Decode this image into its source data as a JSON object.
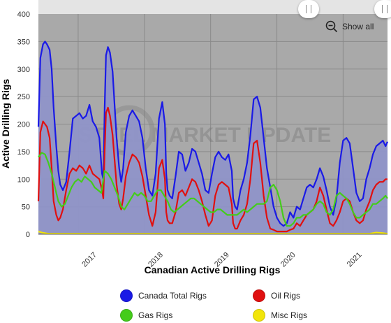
{
  "chart_data": {
    "type": "area",
    "title": "",
    "xlabel": "Canadian Active Drilling Rigs",
    "ylabel": "Active Drilling Rigs",
    "ylim": [
      0,
      400
    ],
    "yticks": [
      0,
      50,
      100,
      150,
      200,
      250,
      300,
      350,
      400
    ],
    "xlim": [
      2016.4,
      2021.67
    ],
    "xticks": [
      2017,
      2018,
      2019,
      2020,
      2021
    ],
    "xtick_labels": [
      "2017",
      "2018",
      "2019",
      "2020",
      "2021"
    ],
    "grid": true,
    "legend_position": "bottom",
    "watermark": "STEEL MARKET UPDATE",
    "series": [
      {
        "name": "Canada Total Rigs",
        "color": "#1a1ae6",
        "fill": "#8f93c8",
        "x": [
          2016.4,
          2016.43,
          2016.47,
          2016.5,
          2016.53,
          2016.57,
          2016.6,
          2016.63,
          2016.67,
          2016.7,
          2016.73,
          2016.77,
          2016.82,
          2016.87,
          2016.92,
          2016.97,
          2017.02,
          2017.07,
          2017.12,
          2017.17,
          2017.22,
          2017.27,
          2017.32,
          2017.36,
          2017.38,
          2017.4,
          2017.42,
          2017.45,
          2017.48,
          2017.52,
          2017.55,
          2017.58,
          2017.62,
          2017.65,
          2017.68,
          2017.72,
          2017.77,
          2017.82,
          2017.87,
          2017.92,
          2017.97,
          2018.02,
          2018.07,
          2018.12,
          2018.17,
          2018.22,
          2018.27,
          2018.31,
          2018.33,
          2018.35,
          2018.38,
          2018.42,
          2018.47,
          2018.52,
          2018.57,
          2018.62,
          2018.67,
          2018.72,
          2018.77,
          2018.82,
          2018.87,
          2018.92,
          2018.97,
          2019.02,
          2019.07,
          2019.12,
          2019.17,
          2019.22,
          2019.27,
          2019.32,
          2019.34,
          2019.37,
          2019.4,
          2019.45,
          2019.5,
          2019.55,
          2019.6,
          2019.65,
          2019.7,
          2019.75,
          2019.8,
          2019.85,
          2019.9,
          2019.95,
          2020.0,
          2020.05,
          2020.1,
          2020.15,
          2020.2,
          2020.25,
          2020.3,
          2020.35,
          2020.4,
          2020.45,
          2020.5,
          2020.55,
          2020.6,
          2020.65,
          2020.7,
          2020.75,
          2020.8,
          2020.85,
          2020.9,
          2020.95,
          2021.0,
          2021.05,
          2021.1,
          2021.15,
          2021.2,
          2021.25,
          2021.3,
          2021.35,
          2021.4,
          2021.45,
          2021.5,
          2021.55,
          2021.6,
          2021.64,
          2021.67
        ],
        "y": [
          195,
          320,
          345,
          350,
          345,
          335,
          300,
          230,
          160,
          115,
          90,
          80,
          95,
          150,
          210,
          215,
          220,
          210,
          215,
          235,
          205,
          195,
          175,
          110,
          100,
          230,
          325,
          340,
          330,
          295,
          235,
          175,
          120,
          95,
          120,
          185,
          215,
          225,
          215,
          205,
          175,
          120,
          80,
          70,
          110,
          210,
          240,
          200,
          110,
          80,
          70,
          65,
          105,
          150,
          145,
          115,
          130,
          155,
          150,
          130,
          110,
          80,
          75,
          110,
          140,
          150,
          140,
          135,
          145,
          115,
          65,
          50,
          45,
          80,
          100,
          130,
          180,
          245,
          250,
          230,
          175,
          120,
          85,
          50,
          30,
          20,
          15,
          20,
          40,
          30,
          50,
          45,
          65,
          85,
          90,
          85,
          100,
          120,
          105,
          80,
          50,
          35,
          65,
          130,
          170,
          175,
          165,
          120,
          75,
          60,
          65,
          100,
          120,
          145,
          160,
          165,
          170,
          160,
          168
        ]
      },
      {
        "name": "Oil Rigs",
        "color": "#e01010",
        "x": [
          2016.4,
          2016.43,
          2016.47,
          2016.5,
          2016.53,
          2016.57,
          2016.6,
          2016.63,
          2016.67,
          2016.7,
          2016.73,
          2016.77,
          2016.82,
          2016.87,
          2016.92,
          2016.97,
          2017.02,
          2017.07,
          2017.12,
          2017.17,
          2017.22,
          2017.27,
          2017.32,
          2017.36,
          2017.38,
          2017.4,
          2017.42,
          2017.45,
          2017.48,
          2017.52,
          2017.55,
          2017.58,
          2017.62,
          2017.65,
          2017.68,
          2017.72,
          2017.77,
          2017.82,
          2017.87,
          2017.92,
          2017.97,
          2018.02,
          2018.07,
          2018.12,
          2018.17,
          2018.22,
          2018.27,
          2018.31,
          2018.33,
          2018.35,
          2018.38,
          2018.42,
          2018.47,
          2018.52,
          2018.57,
          2018.62,
          2018.67,
          2018.72,
          2018.77,
          2018.82,
          2018.87,
          2018.92,
          2018.97,
          2019.02,
          2019.07,
          2019.12,
          2019.17,
          2019.22,
          2019.27,
          2019.32,
          2019.34,
          2019.37,
          2019.4,
          2019.45,
          2019.5,
          2019.55,
          2019.6,
          2019.65,
          2019.7,
          2019.75,
          2019.8,
          2019.85,
          2019.9,
          2019.95,
          2020.0,
          2020.05,
          2020.1,
          2020.15,
          2020.2,
          2020.25,
          2020.3,
          2020.35,
          2020.4,
          2020.45,
          2020.5,
          2020.55,
          2020.6,
          2020.65,
          2020.7,
          2020.75,
          2020.8,
          2020.85,
          2020.9,
          2020.95,
          2021.0,
          2021.05,
          2021.1,
          2021.15,
          2021.2,
          2021.25,
          2021.3,
          2021.35,
          2021.4,
          2021.45,
          2021.5,
          2021.55,
          2021.6,
          2021.64,
          2021.67
        ],
        "y": [
          60,
          185,
          205,
          200,
          195,
          175,
          120,
          60,
          35,
          25,
          30,
          45,
          80,
          110,
          120,
          115,
          125,
          120,
          110,
          125,
          110,
          105,
          100,
          80,
          65,
          150,
          220,
          230,
          215,
          180,
          135,
          90,
          55,
          45,
          65,
          105,
          130,
          145,
          140,
          130,
          105,
          70,
          35,
          15,
          40,
          120,
          135,
          100,
          40,
          25,
          20,
          20,
          40,
          75,
          80,
          70,
          85,
          100,
          95,
          80,
          60,
          35,
          15,
          25,
          70,
          90,
          95,
          90,
          85,
          55,
          20,
          10,
          10,
          25,
          35,
          55,
          100,
          165,
          170,
          130,
          70,
          30,
          10,
          8,
          5,
          5,
          5,
          5,
          8,
          10,
          20,
          15,
          25,
          35,
          40,
          45,
          60,
          85,
          70,
          45,
          20,
          15,
          25,
          40,
          60,
          65,
          60,
          40,
          25,
          20,
          25,
          45,
          60,
          80,
          90,
          95,
          95,
          100,
          100
        ]
      },
      {
        "name": "Gas Rigs",
        "color": "#44cc1a",
        "x": [
          2016.4,
          2016.45,
          2016.5,
          2016.55,
          2016.6,
          2016.65,
          2016.7,
          2016.75,
          2016.8,
          2016.85,
          2016.9,
          2016.95,
          2017.0,
          2017.05,
          2017.1,
          2017.15,
          2017.2,
          2017.25,
          2017.3,
          2017.35,
          2017.4,
          2017.45,
          2017.5,
          2017.55,
          2017.6,
          2017.65,
          2017.7,
          2017.75,
          2017.8,
          2017.85,
          2017.9,
          2017.95,
          2018.0,
          2018.05,
          2018.1,
          2018.15,
          2018.2,
          2018.25,
          2018.3,
          2018.35,
          2018.4,
          2018.45,
          2018.5,
          2018.55,
          2018.6,
          2018.65,
          2018.7,
          2018.75,
          2018.8,
          2018.85,
          2018.9,
          2018.95,
          2019.0,
          2019.05,
          2019.1,
          2019.15,
          2019.2,
          2019.25,
          2019.3,
          2019.35,
          2019.4,
          2019.45,
          2019.5,
          2019.55,
          2019.6,
          2019.65,
          2019.7,
          2019.75,
          2019.8,
          2019.85,
          2019.9,
          2019.95,
          2020.0,
          2020.05,
          2020.1,
          2020.15,
          2020.2,
          2020.25,
          2020.3,
          2020.35,
          2020.4,
          2020.45,
          2020.5,
          2020.55,
          2020.6,
          2020.65,
          2020.7,
          2020.75,
          2020.8,
          2020.85,
          2020.9,
          2020.95,
          2021.0,
          2021.05,
          2021.1,
          2021.15,
          2021.2,
          2021.25,
          2021.3,
          2021.35,
          2021.4,
          2021.45,
          2021.5,
          2021.55,
          2021.6,
          2021.64,
          2021.67
        ],
        "y": [
          140,
          148,
          145,
          130,
          110,
          85,
          60,
          50,
          55,
          70,
          85,
          95,
          100,
          95,
          105,
          100,
          95,
          85,
          80,
          75,
          115,
          110,
          100,
          85,
          70,
          50,
          45,
          55,
          65,
          75,
          70,
          75,
          70,
          60,
          60,
          70,
          80,
          80,
          70,
          60,
          45,
          40,
          45,
          50,
          55,
          60,
          65,
          65,
          60,
          55,
          50,
          45,
          40,
          40,
          45,
          45,
          40,
          35,
          35,
          35,
          35,
          40,
          45,
          40,
          45,
          50,
          55,
          55,
          55,
          60,
          85,
          90,
          80,
          60,
          30,
          15,
          15,
          20,
          30,
          30,
          35,
          35,
          40,
          45,
          55,
          60,
          55,
          40,
          35,
          45,
          70,
          75,
          70,
          65,
          55,
          40,
          30,
          30,
          35,
          40,
          45,
          55,
          55,
          60,
          65,
          70,
          65
        ]
      },
      {
        "name": "Misc Rigs",
        "color": "#f2e50a",
        "x": [
          2016.4,
          2016.45,
          2016.5,
          2016.55,
          2016.6,
          2016.7,
          2016.8,
          2016.9,
          2017.0,
          2017.2,
          2017.4,
          2017.6,
          2017.8,
          2018.0,
          2018.2,
          2018.4,
          2018.6,
          2018.8,
          2019.0,
          2019.2,
          2019.4,
          2019.6,
          2019.8,
          2020.0,
          2020.2,
          2020.4,
          2020.6,
          2020.8,
          2021.0,
          2021.2,
          2021.4,
          2021.5,
          2021.6,
          2021.67
        ],
        "y": [
          5,
          3,
          2,
          1,
          1,
          1,
          1,
          1,
          1,
          1,
          1,
          1,
          1,
          1,
          1,
          1,
          1,
          1,
          1,
          1,
          1,
          1,
          1,
          1,
          1,
          1,
          1,
          1,
          1,
          1,
          1,
          3,
          2,
          1
        ]
      }
    ]
  },
  "controls": {
    "show_all_label": "Show all"
  }
}
